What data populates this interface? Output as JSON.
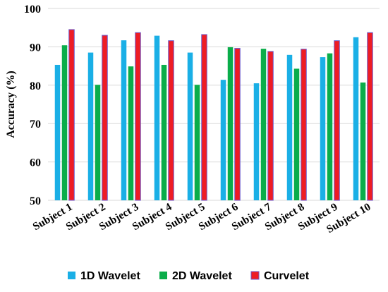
{
  "chart_data": {
    "type": "bar",
    "title": "",
    "xlabel": "",
    "ylabel": "Accuracy (%)",
    "ylim": [
      50,
      100
    ],
    "yticks": [
      50,
      60,
      70,
      80,
      90,
      100
    ],
    "grid": true,
    "legend_position": "bottom",
    "categories": [
      "Subject 1",
      "Subject 2",
      "Subject 3",
      "Subject 4",
      "Subject 5",
      "Subject 6",
      "Subject 7",
      "Subject 8",
      "Subject 9",
      "Subject 10"
    ],
    "series": [
      {
        "name": "1D Wavelet",
        "color": "#1aafe6",
        "values": [
          85.3,
          88.5,
          91.7,
          92.9,
          88.5,
          81.4,
          80.5,
          87.9,
          87.3,
          92.5
        ]
      },
      {
        "name": "2D Wavelet",
        "color": "#0aad4a",
        "values": [
          90.4,
          80.1,
          84.9,
          85.3,
          80.1,
          89.9,
          89.5,
          84.3,
          88.3,
          80.7
        ]
      },
      {
        "name": "Curvelet",
        "color": "#ee1c24",
        "edge_color": "#6a5acd",
        "values": [
          94.5,
          93.0,
          93.7,
          91.6,
          93.2,
          89.6,
          88.8,
          89.4,
          91.6,
          93.7
        ]
      }
    ]
  }
}
